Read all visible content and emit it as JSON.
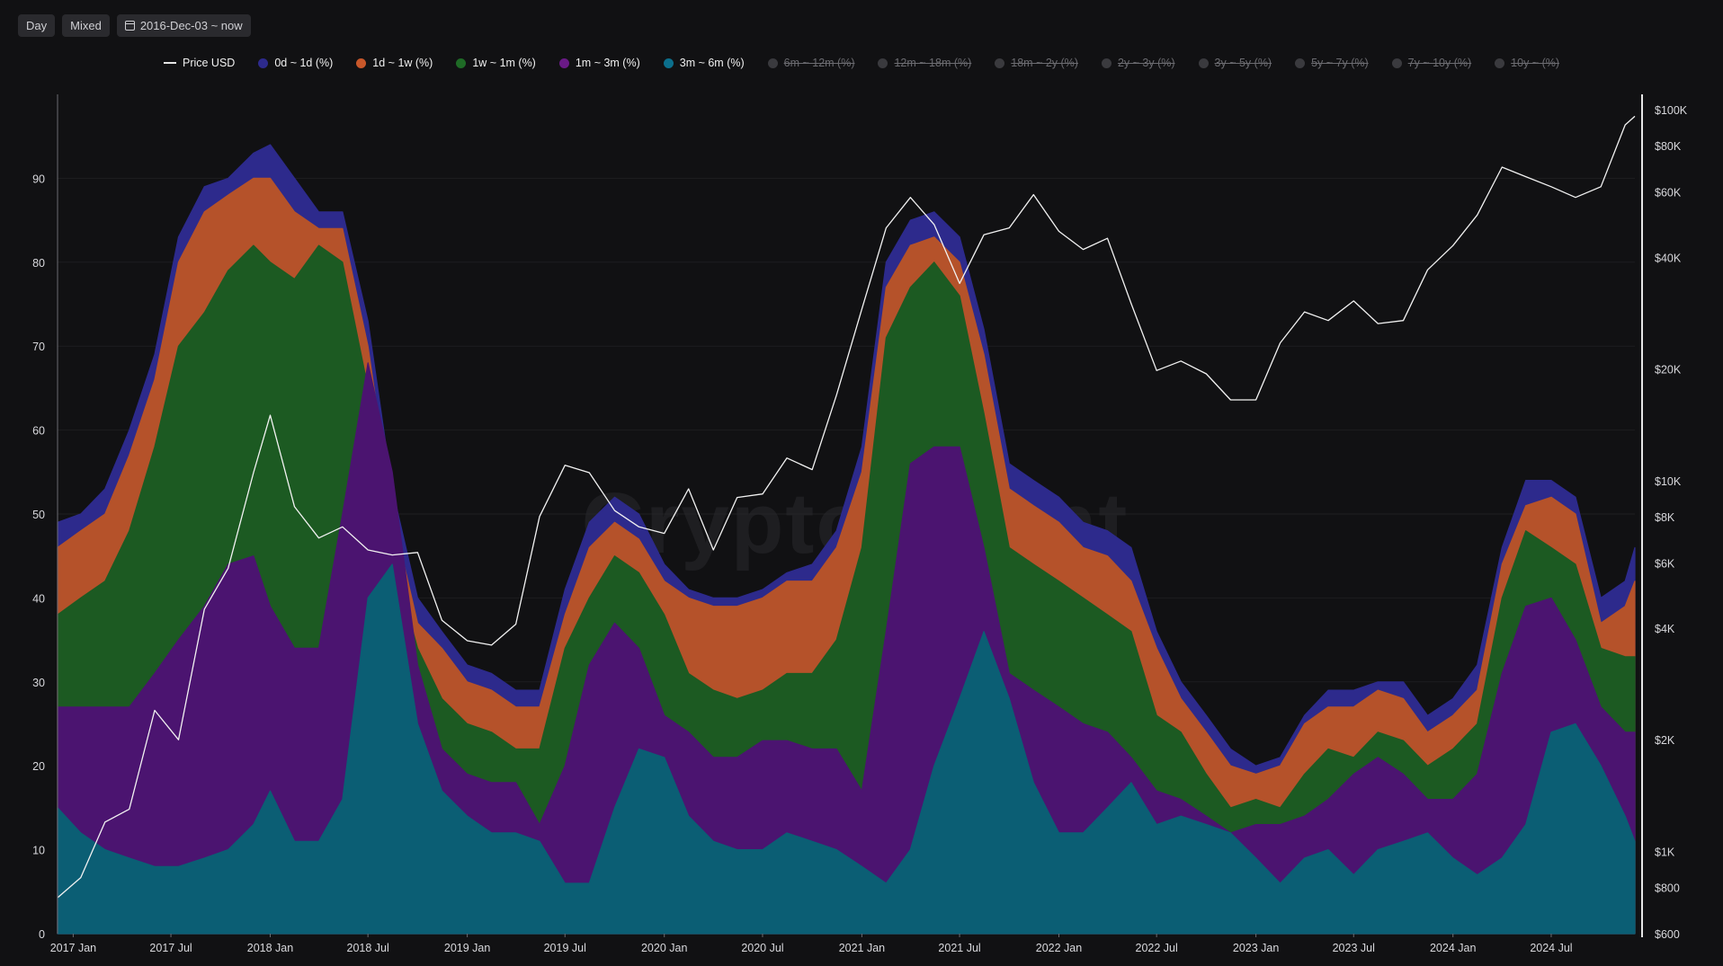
{
  "toolbar": {
    "day_label": "Day",
    "mixed_label": "Mixed",
    "date_range": "2016-Dec-03 ~ now"
  },
  "watermark": "CryptoQuant",
  "legend": [
    {
      "label": "Price USD",
      "color": "#ffffff",
      "kind": "line",
      "active": true
    },
    {
      "label": "0d ~ 1d (%)",
      "color": "#2d2a8c",
      "kind": "dot",
      "active": true
    },
    {
      "label": "1d ~ 1w (%)",
      "color": "#c8572a",
      "kind": "dot",
      "active": true
    },
    {
      "label": "1w ~ 1m (%)",
      "color": "#1f6b26",
      "kind": "dot",
      "active": true
    },
    {
      "label": "1m ~ 3m (%)",
      "color": "#6a1a86",
      "kind": "dot",
      "active": true
    },
    {
      "label": "3m ~ 6m (%)",
      "color": "#0c6f8c",
      "kind": "dot",
      "active": true
    },
    {
      "label": "6m ~ 12m (%)",
      "color": "#3a3a3e",
      "kind": "dot",
      "active": false
    },
    {
      "label": "12m ~ 18m (%)",
      "color": "#3a3a3e",
      "kind": "dot",
      "active": false
    },
    {
      "label": "18m ~ 2y (%)",
      "color": "#3a3a3e",
      "kind": "dot",
      "active": false
    },
    {
      "label": "2y ~ 3y (%)",
      "color": "#3a3a3e",
      "kind": "dot",
      "active": false
    },
    {
      "label": "3y ~ 5y (%)",
      "color": "#3a3a3e",
      "kind": "dot",
      "active": false
    },
    {
      "label": "5y ~ 7y (%)",
      "color": "#3a3a3e",
      "kind": "dot",
      "active": false
    },
    {
      "label": "7y ~ 10y (%)",
      "color": "#3a3a3e",
      "kind": "dot",
      "active": false
    },
    {
      "label": "10y ~ (%)",
      "color": "#3a3a3e",
      "kind": "dot",
      "active": false
    }
  ],
  "chart_data": {
    "type": "area",
    "x_dates": [
      "2016-12-03",
      "2017-01-15",
      "2017-03-01",
      "2017-04-15",
      "2017-06-01",
      "2017-07-15",
      "2017-09-01",
      "2017-10-15",
      "2017-12-01",
      "2018-01-01",
      "2018-02-15",
      "2018-04-01",
      "2018-05-15",
      "2018-07-01",
      "2018-08-15",
      "2018-10-01",
      "2018-11-15",
      "2019-01-01",
      "2019-02-15",
      "2019-04-01",
      "2019-05-15",
      "2019-07-01",
      "2019-08-15",
      "2019-10-01",
      "2019-11-15",
      "2020-01-01",
      "2020-02-15",
      "2020-04-01",
      "2020-05-15",
      "2020-07-01",
      "2020-08-15",
      "2020-10-01",
      "2020-11-15",
      "2021-01-01",
      "2021-02-15",
      "2021-04-01",
      "2021-05-15",
      "2021-07-01",
      "2021-08-15",
      "2021-10-01",
      "2021-11-15",
      "2022-01-01",
      "2022-02-15",
      "2022-04-01",
      "2022-05-15",
      "2022-07-01",
      "2022-08-15",
      "2022-10-01",
      "2022-11-15",
      "2023-01-01",
      "2023-02-15",
      "2023-04-01",
      "2023-05-15",
      "2023-07-01",
      "2023-08-15",
      "2023-10-01",
      "2023-11-15",
      "2024-01-01",
      "2024-02-15",
      "2024-04-01",
      "2024-05-15",
      "2024-07-01",
      "2024-08-15",
      "2024-10-01",
      "2024-11-15",
      "2024-12-03"
    ],
    "series": [
      {
        "name": "3m ~ 6m (%)",
        "color": "#0b5e74",
        "values": [
          15,
          12,
          10,
          9,
          8,
          8,
          9,
          10,
          13,
          17,
          11,
          11,
          16,
          40,
          44,
          25,
          17,
          14,
          12,
          12,
          11,
          6,
          6,
          15,
          22,
          21,
          14,
          11,
          10,
          10,
          12,
          11,
          10,
          8,
          6,
          10,
          20,
          28,
          36,
          28,
          18,
          12,
          12,
          15,
          18,
          13,
          14,
          13,
          12,
          9,
          6,
          9,
          10,
          7,
          10,
          11,
          12,
          9,
          7,
          9,
          13,
          24,
          25,
          20,
          14,
          11
        ]
      },
      {
        "name": "1m ~ 3m (%)",
        "color": "#4b1470",
        "values": [
          27,
          27,
          27,
          27,
          31,
          35,
          39,
          44,
          45,
          39,
          34,
          34,
          50,
          68,
          55,
          32,
          22,
          19,
          18,
          18,
          13,
          20,
          32,
          37,
          34,
          26,
          24,
          21,
          21,
          23,
          23,
          22,
          22,
          17,
          36,
          56,
          58,
          58,
          46,
          31,
          29,
          27,
          25,
          24,
          21,
          17,
          16,
          14,
          12,
          13,
          13,
          14,
          16,
          19,
          21,
          19,
          16,
          16,
          19,
          31,
          39,
          40,
          35,
          27,
          24,
          24
        ]
      },
      {
        "name": "1w ~ 1m (%)",
        "color": "#1c5a22",
        "values": [
          38,
          40,
          42,
          48,
          58,
          70,
          74,
          79,
          82,
          80,
          78,
          82,
          80,
          65,
          45,
          34,
          28,
          25,
          24,
          22,
          22,
          34,
          40,
          45,
          43,
          38,
          31,
          29,
          28,
          29,
          31,
          31,
          35,
          46,
          71,
          77,
          80,
          76,
          62,
          46,
          44,
          42,
          40,
          38,
          36,
          26,
          24,
          19,
          15,
          16,
          15,
          19,
          22,
          21,
          24,
          23,
          20,
          22,
          25,
          40,
          48,
          46,
          44,
          34,
          33,
          33
        ]
      },
      {
        "name": "1d ~ 1w (%)",
        "color": "#b5522a",
        "values": [
          46,
          48,
          50,
          57,
          66,
          80,
          86,
          88,
          90,
          90,
          86,
          84,
          84,
          70,
          50,
          37,
          34,
          30,
          29,
          27,
          27,
          38,
          46,
          49,
          47,
          42,
          40,
          39,
          39,
          40,
          42,
          42,
          46,
          55,
          77,
          82,
          83,
          80,
          69,
          53,
          51,
          49,
          46,
          45,
          42,
          34,
          28,
          24,
          20,
          19,
          20,
          25,
          27,
          27,
          29,
          28,
          24,
          26,
          29,
          44,
          51,
          52,
          50,
          37,
          39,
          42
        ]
      },
      {
        "name": "0d ~ 1d (%)",
        "color": "#2d2a8c",
        "values": [
          49,
          50,
          53,
          60,
          69,
          83,
          89,
          90,
          93,
          94,
          90,
          86,
          86,
          73,
          53,
          40,
          36,
          32,
          31,
          29,
          29,
          41,
          49,
          52,
          50,
          44,
          41,
          40,
          40,
          41,
          43,
          44,
          48,
          58,
          80,
          85,
          86,
          83,
          72,
          56,
          54,
          52,
          49,
          48,
          46,
          36,
          30,
          26,
          22,
          20,
          21,
          26,
          29,
          29,
          30,
          30,
          26,
          28,
          32,
          46,
          54,
          54,
          52,
          40,
          42,
          46
        ]
      }
    ],
    "price_usd": [
      750,
      850,
      1200,
      1300,
      2400,
      2000,
      4500,
      5800,
      10500,
      15000,
      8500,
      7000,
      7500,
      6500,
      6300,
      6400,
      4200,
      3700,
      3600,
      4100,
      8000,
      11000,
      10500,
      8300,
      7500,
      7200,
      9500,
      6500,
      9000,
      9200,
      11500,
      10700,
      17000,
      29000,
      48000,
      58000,
      49000,
      34000,
      46000,
      48000,
      59000,
      47000,
      42000,
      45000,
      30000,
      19800,
      21000,
      19400,
      16500,
      16500,
      23500,
      28500,
      27000,
      30500,
      26500,
      27000,
      37000,
      43000,
      52000,
      70000,
      66000,
      62000,
      58000,
      62000,
      91000,
      96000
    ],
    "y_left": {
      "min": 0,
      "max": 100,
      "ticks": [
        0,
        10,
        20,
        30,
        40,
        50,
        60,
        70,
        80,
        90
      ]
    },
    "y_right": {
      "scale": "log",
      "min": 600,
      "max": 110000,
      "ticks": [
        {
          "value": 600,
          "label": "$600"
        },
        {
          "value": 800,
          "label": "$800"
        },
        {
          "value": 1000,
          "label": "$1K"
        },
        {
          "value": 2000,
          "label": "$2K"
        },
        {
          "value": 4000,
          "label": "$4K"
        },
        {
          "value": 6000,
          "label": "$6K"
        },
        {
          "value": 8000,
          "label": "$8K"
        },
        {
          "value": 10000,
          "label": "$10K"
        },
        {
          "value": 20000,
          "label": "$20K"
        },
        {
          "value": 40000,
          "label": "$40K"
        },
        {
          "value": 60000,
          "label": "$60K"
        },
        {
          "value": 80000,
          "label": "$80K"
        },
        {
          "value": 100000,
          "label": "$100K"
        }
      ]
    },
    "x_ticks": [
      {
        "date": "2017-01-01",
        "label": "2017 Jan"
      },
      {
        "date": "2017-07-01",
        "label": "2017 Jul"
      },
      {
        "date": "2018-01-01",
        "label": "2018 Jan"
      },
      {
        "date": "2018-07-01",
        "label": "2018 Jul"
      },
      {
        "date": "2019-01-01",
        "label": "2019 Jan"
      },
      {
        "date": "2019-07-01",
        "label": "2019 Jul"
      },
      {
        "date": "2020-01-01",
        "label": "2020 Jan"
      },
      {
        "date": "2020-07-01",
        "label": "2020 Jul"
      },
      {
        "date": "2021-01-01",
        "label": "2021 Jan"
      },
      {
        "date": "2021-07-01",
        "label": "2021 Jul"
      },
      {
        "date": "2022-01-01",
        "label": "2022 Jan"
      },
      {
        "date": "2022-07-01",
        "label": "2022 Jul"
      },
      {
        "date": "2023-01-01",
        "label": "2023 Jan"
      },
      {
        "date": "2023-07-01",
        "label": "2023 Jul"
      },
      {
        "date": "2024-01-01",
        "label": "2024 Jan"
      },
      {
        "date": "2024-07-01",
        "label": "2024 Jul"
      }
    ],
    "grid": true,
    "legend_position": "top-center"
  }
}
